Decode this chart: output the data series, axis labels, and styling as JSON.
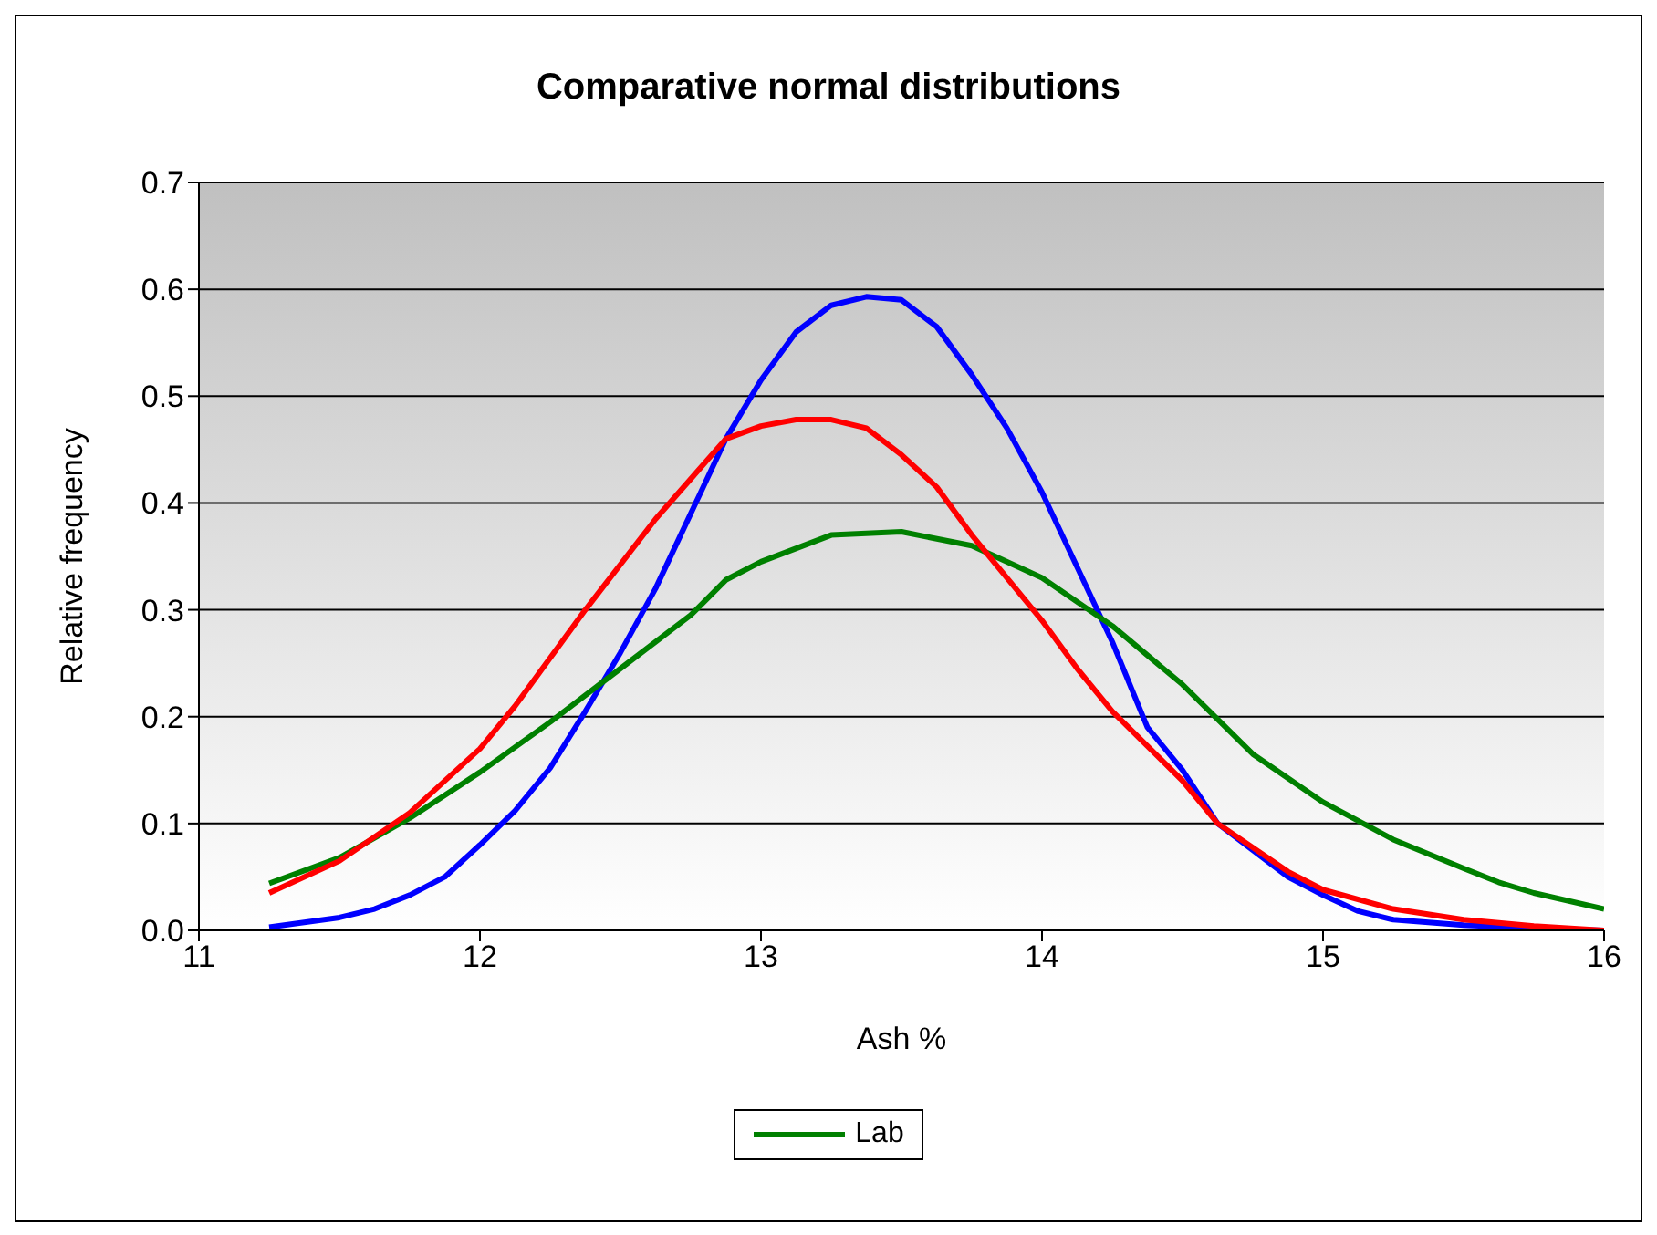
{
  "chart_data": {
    "type": "line",
    "title": "Comparative normal distributions",
    "xlabel": "Ash %",
    "ylabel": "Relative frequency",
    "xlim": [
      11,
      16
    ],
    "xticks": [
      11,
      12,
      13,
      14,
      15,
      16
    ],
    "ylim": [
      0,
      0.7
    ],
    "yticks": [
      {
        "value": 0,
        "label": "0.0"
      },
      0.1,
      0.2,
      0.3,
      0.4,
      0.5,
      0.6,
      0.7
    ],
    "grid": "y",
    "legend": "bottom",
    "marker": "none",
    "line_style": "solid",
    "series": [
      {
        "color": "#0000ff",
        "x": [
          11.25,
          11.5,
          11.625,
          11.75,
          11.875,
          12,
          12.125,
          12.25,
          12.375,
          12.5,
          12.625,
          12.75,
          12.875,
          13,
          13.125,
          13.25,
          13.375,
          13.5,
          13.625,
          13.75,
          13.875,
          14,
          14.125,
          14.25,
          14.375,
          14.5,
          14.625,
          14.75,
          14.875,
          15,
          15.125,
          15.25,
          15.5,
          15.75,
          16
        ],
        "values": [
          0.003,
          0.012,
          0.02,
          0.033,
          0.05,
          0.08,
          0.112,
          0.152,
          0.205,
          0.26,
          0.32,
          0.39,
          0.46,
          0.515,
          0.56,
          0.585,
          0.593,
          0.59,
          0.565,
          0.52,
          0.47,
          0.41,
          0.34,
          0.27,
          0.19,
          0.15,
          0.1,
          0.075,
          0.05,
          0.033,
          0.018,
          0.01,
          0.005,
          0.002,
          0
        ]
      },
      {
        "name": "Lab",
        "color": "#008000",
        "x": [
          11.25,
          11.5,
          11.75,
          12,
          12.25,
          12.5,
          12.75,
          12.875,
          13,
          13.25,
          13.5,
          13.75,
          14,
          14.25,
          14.5,
          14.75,
          15,
          15.25,
          15.5,
          15.625,
          15.75,
          16
        ],
        "values": [
          0.044,
          0.068,
          0.105,
          0.148,
          0.195,
          0.245,
          0.295,
          0.328,
          0.345,
          0.37,
          0.373,
          0.36,
          0.33,
          0.285,
          0.23,
          0.165,
          0.12,
          0.085,
          0.058,
          0.045,
          0.035,
          0.02
        ]
      },
      {
        "color": "#ff0000",
        "x": [
          11.25,
          11.5,
          11.75,
          12,
          12.125,
          12.375,
          12.625,
          12.875,
          13,
          13.125,
          13.25,
          13.375,
          13.5,
          13.625,
          13.75,
          14,
          14.125,
          14.25,
          14.5,
          14.625,
          14.875,
          15,
          15.25,
          15.5,
          15.75,
          16
        ],
        "values": [
          0.035,
          0.065,
          0.11,
          0.17,
          0.21,
          0.3,
          0.385,
          0.46,
          0.472,
          0.478,
          0.478,
          0.47,
          0.445,
          0.415,
          0.37,
          0.29,
          0.245,
          0.205,
          0.14,
          0.1,
          0.055,
          0.038,
          0.02,
          0.01,
          0.004,
          0
        ]
      }
    ]
  }
}
